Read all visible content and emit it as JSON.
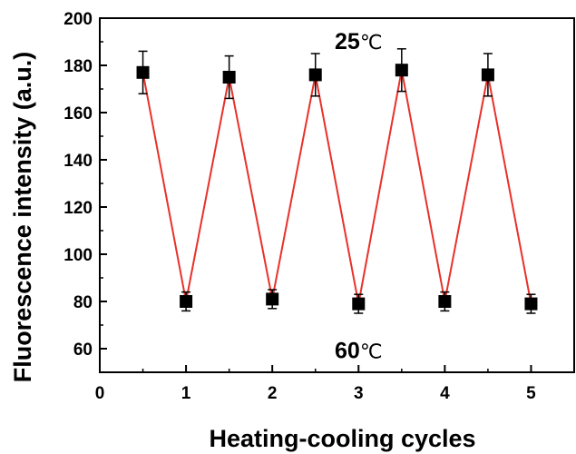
{
  "chart_data": {
    "type": "line",
    "title": "",
    "xlabel": "Heating-cooling cycles",
    "ylabel": "Fluorescence intensity (a.u.)",
    "xlim": [
      0,
      5.5
    ],
    "ylim": [
      50,
      200
    ],
    "xticks": [
      0,
      1,
      2,
      3,
      4,
      5
    ],
    "yticks": [
      60,
      80,
      100,
      120,
      140,
      160,
      180,
      200
    ],
    "series": [
      {
        "x": [
          0.5,
          1,
          1.5,
          2,
          2.5,
          3,
          3.5,
          4,
          4.5,
          5
        ],
        "y": [
          177,
          80,
          175,
          81,
          176,
          79,
          178,
          80,
          176,
          79
        ],
        "error": [
          9,
          4,
          9,
          4,
          9,
          4,
          9,
          4,
          9,
          4
        ],
        "line_color": "#e8312a",
        "marker": "square",
        "marker_color": "#000000"
      }
    ],
    "annotations": [
      {
        "number": "25",
        "unit": "℃",
        "at": [
          3.0,
          187
        ]
      },
      {
        "number": "60",
        "unit": "℃",
        "at": [
          3.0,
          56
        ]
      }
    ],
    "grid": false
  }
}
